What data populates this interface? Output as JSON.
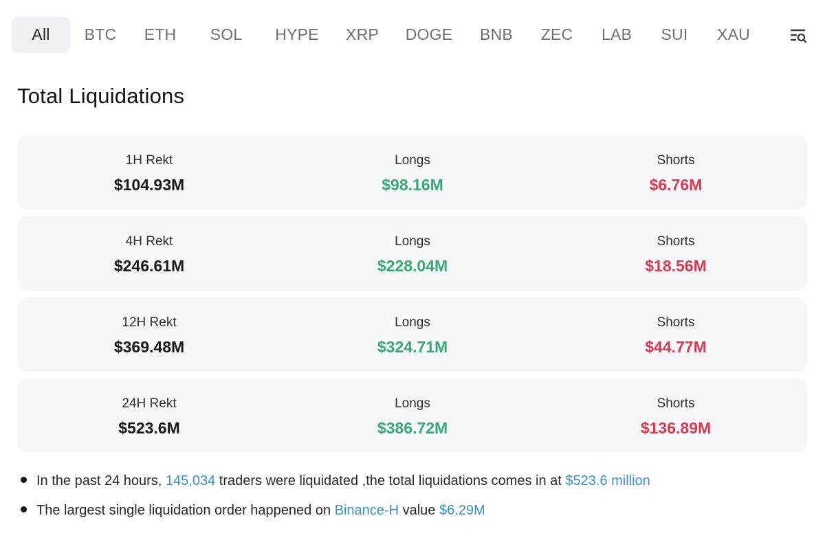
{
  "tabs": [
    "All",
    "BTC",
    "ETH",
    "SOL",
    "HYPE",
    "XRP",
    "DOGE",
    "BNB",
    "ZEC",
    "LAB",
    "SUI",
    "XAU"
  ],
  "filter_icon": "filter-search-icon",
  "title": "Total Liquidations",
  "rows": [
    {
      "label": "1H Rekt",
      "total": "$104.93M",
      "longs_label": "Longs",
      "longs": "$98.16M",
      "shorts_label": "Shorts",
      "shorts": "$6.76M"
    },
    {
      "label": "4H Rekt",
      "total": "$246.61M",
      "longs_label": "Longs",
      "longs": "$228.04M",
      "shorts_label": "Shorts",
      "shorts": "$18.56M"
    },
    {
      "label": "12H Rekt",
      "total": "$369.48M",
      "longs_label": "Longs",
      "longs": "$324.71M",
      "shorts_label": "Shorts",
      "shorts": "$44.77M"
    },
    {
      "label": "24H Rekt",
      "total": "$523.6M",
      "longs_label": "Longs",
      "longs": "$386.72M",
      "shorts_label": "Shorts",
      "shorts": "$136.89M"
    }
  ],
  "summary": {
    "line1": {
      "prefix": "In the past 24 hours, ",
      "traders": "145,034",
      "middle": " traders were liquidated ,the total liquidations comes in at ",
      "total": "$523.6 million"
    },
    "line2": {
      "prefix": "The largest single liquidation order happened on ",
      "exchange": "Binance-H",
      "middle": " value ",
      "value": "$6.29M"
    }
  },
  "colors": {
    "longs": "#35a873",
    "shorts": "#d83a52",
    "link": "#3a8fd0",
    "card_bg": "#f6f7f9",
    "active_tab_bg": "#eef0f3"
  }
}
